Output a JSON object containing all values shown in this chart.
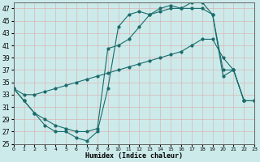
{
  "xlabel": "Humidex (Indice chaleur)",
  "bg_color": "#cceaea",
  "grid_color": "#aacccc",
  "line_color": "#1a6b6b",
  "xlim": [
    0,
    23
  ],
  "ylim": [
    25,
    48
  ],
  "xticks": [
    0,
    1,
    2,
    3,
    4,
    5,
    6,
    7,
    8,
    9,
    10,
    11,
    12,
    13,
    14,
    15,
    16,
    17,
    18,
    19,
    20,
    21,
    22,
    23
  ],
  "yticks": [
    25,
    27,
    29,
    31,
    33,
    35,
    37,
    39,
    41,
    43,
    45,
    47
  ],
  "curve1_x": [
    0,
    1,
    2,
    3,
    4,
    5,
    6,
    7,
    8,
    9,
    10,
    11,
    12,
    13,
    14,
    15,
    16,
    17,
    18,
    19,
    20,
    21,
    22,
    23
  ],
  "curve1_y": [
    34,
    32,
    30,
    28,
    27,
    27,
    26,
    25.5,
    27,
    34,
    44,
    46,
    46.5,
    46,
    47,
    47.5,
    47,
    48,
    48,
    46,
    37,
    37,
    32,
    32
  ],
  "curve2_x": [
    0,
    1,
    2,
    3,
    4,
    5,
    6,
    7,
    8,
    9,
    10,
    11,
    12,
    13,
    14,
    15,
    16,
    17,
    18,
    19,
    20,
    21,
    22,
    23
  ],
  "curve2_y": [
    34,
    33,
    33,
    33.5,
    34,
    34.5,
    35,
    35.5,
    36,
    36.5,
    37,
    37.5,
    38,
    38.5,
    39,
    39.5,
    40,
    41,
    42,
    42,
    39,
    37,
    32,
    32
  ],
  "curve3_x": [
    0,
    1,
    2,
    3,
    4,
    5,
    6,
    7,
    8,
    9,
    10,
    11,
    12,
    13,
    14,
    15,
    16,
    17,
    18,
    19,
    20,
    21,
    22,
    23
  ],
  "curve3_y": [
    34,
    32,
    30,
    29,
    28,
    27.5,
    27,
    27,
    27.5,
    40.5,
    41,
    42,
    44,
    46,
    46.5,
    47,
    47,
    47,
    47,
    46,
    36,
    37,
    32,
    32
  ]
}
